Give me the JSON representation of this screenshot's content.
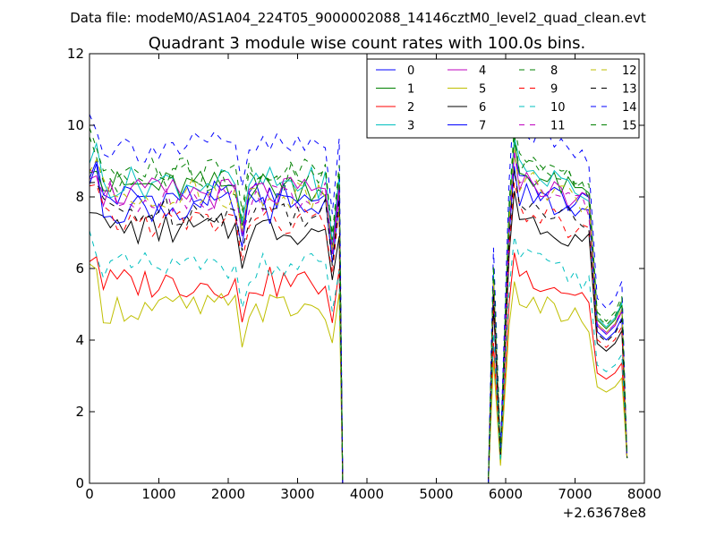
{
  "suptitle": "Data file: modeM0/AS1A04_224T05_9000002088_14146cztM0_level2_quad_clean.evt",
  "chart_data": {
    "type": "line",
    "title": "Quadrant 3 module wise count rates with 100.0s bins.",
    "xlabel": "",
    "ylabel": "",
    "x_offset_label": "+2.63678e8",
    "xlim": [
      0,
      8000
    ],
    "ylim": [
      0,
      12
    ],
    "xticks": [
      0,
      1000,
      2000,
      3000,
      4000,
      5000,
      6000,
      7000,
      8000
    ],
    "yticks": [
      0,
      2,
      4,
      6,
      8,
      10,
      12
    ],
    "grid": false,
    "legend_position": "top-right",
    "legend_columns": 4,
    "series": [
      {
        "name": "0",
        "color": "#0000ff",
        "dash": "solid",
        "level": 8.0
      },
      {
        "name": "1",
        "color": "#008000",
        "dash": "solid",
        "level": 8.3
      },
      {
        "name": "2",
        "color": "#ff0000",
        "dash": "solid",
        "level": 5.6
      },
      {
        "name": "3",
        "color": "#00bfbf",
        "dash": "solid",
        "level": 8.4
      },
      {
        "name": "4",
        "color": "#bf00bf",
        "dash": "solid",
        "level": 8.1
      },
      {
        "name": "5",
        "color": "#bfbf00",
        "dash": "solid",
        "level": 4.9
      },
      {
        "name": "6",
        "color": "#000000",
        "dash": "solid",
        "level": 7.1
      },
      {
        "name": "7",
        "color": "#0000ff",
        "dash": "solid",
        "level": 7.7
      },
      {
        "name": "8",
        "color": "#008000",
        "dash": "dashed",
        "level": 8.5
      },
      {
        "name": "9",
        "color": "#ff0000",
        "dash": "dashed",
        "level": 7.3
      },
      {
        "name": "10",
        "color": "#00bfbf",
        "dash": "dashed",
        "level": 6.0
      },
      {
        "name": "11",
        "color": "#bf00bf",
        "dash": "dashed",
        "level": 8.0
      },
      {
        "name": "12",
        "color": "#bfbf00",
        "dash": "dashed",
        "level": 8.1
      },
      {
        "name": "13",
        "color": "#000000",
        "dash": "dashed",
        "level": 7.6
      },
      {
        "name": "14",
        "color": "#0000ff",
        "dash": "dashed",
        "level": 9.4
      },
      {
        "name": "15",
        "color": "#008000",
        "dash": "dashed",
        "level": 8.7
      }
    ]
  }
}
